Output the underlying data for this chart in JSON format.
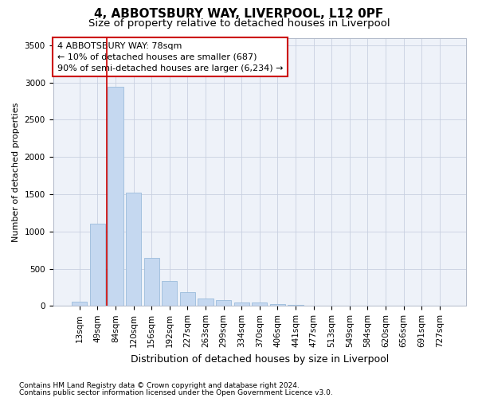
{
  "title_line1": "4, ABBOTSBURY WAY, LIVERPOOL, L12 0PF",
  "title_line2": "Size of property relative to detached houses in Liverpool",
  "xlabel": "Distribution of detached houses by size in Liverpool",
  "ylabel": "Number of detached properties",
  "categories": [
    "13sqm",
    "49sqm",
    "84sqm",
    "120sqm",
    "156sqm",
    "192sqm",
    "227sqm",
    "263sqm",
    "299sqm",
    "334sqm",
    "370sqm",
    "406sqm",
    "441sqm",
    "477sqm",
    "513sqm",
    "549sqm",
    "584sqm",
    "620sqm",
    "656sqm",
    "691sqm",
    "727sqm"
  ],
  "values": [
    55,
    1100,
    2940,
    1520,
    650,
    335,
    190,
    100,
    75,
    50,
    50,
    30,
    18,
    8,
    4,
    3,
    1,
    1,
    0,
    0,
    0
  ],
  "bar_color": "#c5d8f0",
  "bar_edgecolor": "#9bbcdc",
  "vline_color": "#cc0000",
  "annotation_text": "4 ABBOTSBURY WAY: 78sqm\n← 10% of detached houses are smaller (687)\n90% of semi-detached houses are larger (6,234) →",
  "annotation_box_edgecolor": "#cc0000",
  "annotation_facecolor": "white",
  "ylim": [
    0,
    3600
  ],
  "yticks": [
    0,
    500,
    1000,
    1500,
    2000,
    2500,
    3000,
    3500
  ],
  "footer_line1": "Contains HM Land Registry data © Crown copyright and database right 2024.",
  "footer_line2": "Contains public sector information licensed under the Open Government Licence v3.0.",
  "background_color": "#eef2f9",
  "grid_color": "#c8d0e0",
  "title_fontsize": 11,
  "subtitle_fontsize": 9.5,
  "ylabel_fontsize": 8,
  "xlabel_fontsize": 9,
  "tick_fontsize": 7.5,
  "annotation_fontsize": 8,
  "footer_fontsize": 6.5
}
